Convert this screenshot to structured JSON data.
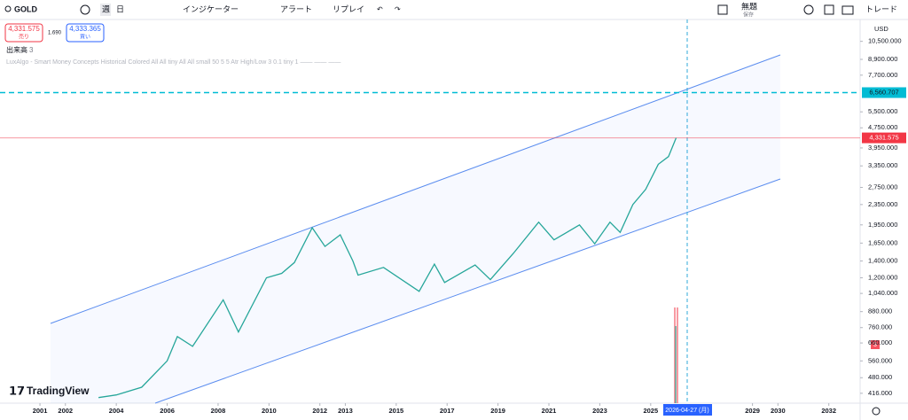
{
  "toolbar": {
    "symbol": "GOLD",
    "interval_week": "週",
    "interval_day": "日",
    "indicators": "インジケーター",
    "alert": "アラート",
    "replay": "リプレイ",
    "layout_name": "無題",
    "save": "保存",
    "trade": "トレード"
  },
  "quote": {
    "sell_price": "4,331.575",
    "sell_label": "売り",
    "spread": "1.690",
    "buy_price": "4,333.365",
    "buy_label": "買い"
  },
  "legend": {
    "volume_label": "出来高",
    "volume_value": "3",
    "indicator": "LuxAlgo - Smart Money Concepts Historical Colored All All tiny All All small 50 5 5 Atr High/Low 3 0.1 tiny 1 —— —— ——"
  },
  "watermark": "TradingView",
  "chart_data": {
    "type": "line",
    "log_scale": true,
    "currency": "USD",
    "color": "#26a69a",
    "x": [
      2003.3,
      2004,
      2005,
      2006,
      2006.4,
      2007,
      2008.2,
      2008.8,
      2009.9,
      2010.5,
      2011,
      2011.7,
      2012.2,
      2012.8,
      2013.3,
      2013.5,
      2014.5,
      2015.9,
      2016.5,
      2016.9,
      2018.1,
      2018.7,
      2019.6,
      2020.6,
      2021.2,
      2022.2,
      2022.8,
      2023.4,
      2023.8,
      2024.3,
      2024.8,
      2025.3,
      2025.7,
      2026
    ],
    "values": [
      400,
      410,
      440,
      560,
      700,
      640,
      980,
      730,
      1200,
      1250,
      1380,
      1900,
      1600,
      1780,
      1400,
      1230,
      1320,
      1060,
      1360,
      1150,
      1350,
      1180,
      1500,
      2000,
      1700,
      1950,
      1640,
      2000,
      1820,
      2350,
      2700,
      3400,
      3650,
      4331.575
    ],
    "xlim": [
      1999.43,
      2033.23
    ],
    "xticks": [
      2001,
      2002,
      2004,
      2006,
      2008,
      2010,
      2012,
      2013,
      2015,
      2017,
      2019,
      2021,
      2023,
      2025,
      2029,
      2030,
      2032
    ],
    "ylim": [
      380,
      11450
    ],
    "yticks": [
      {
        "value": 10500,
        "label": "10,500.000"
      },
      {
        "value": 8900,
        "label": "8,900.000"
      },
      {
        "value": 7700,
        "label": "7,700.000"
      },
      {
        "value": 5500,
        "label": "5,500.000"
      },
      {
        "value": 4750,
        "label": "4,750.000"
      },
      {
        "value": 3950,
        "label": "3,950.000"
      },
      {
        "value": 3350,
        "label": "3,350.000"
      },
      {
        "value": 2750,
        "label": "2,750.000"
      },
      {
        "value": 2350,
        "label": "2,350.000"
      },
      {
        "value": 1950,
        "label": "1,950.000"
      },
      {
        "value": 1650,
        "label": "1,650.000"
      },
      {
        "value": 1400,
        "label": "1,400.000"
      },
      {
        "value": 1200,
        "label": "1,200.000"
      },
      {
        "value": 1040,
        "label": "1,040.000"
      },
      {
        "value": 880,
        "label": "880.000"
      },
      {
        "value": 760,
        "label": "760.000"
      },
      {
        "value": 660,
        "label": "660.000"
      },
      {
        "value": 560,
        "label": "560.000"
      },
      {
        "value": 480,
        "label": "480.000"
      },
      {
        "value": 416,
        "label": "416.000"
      }
    ],
    "price_line": {
      "value": 4331.575,
      "label": "4,331.575"
    },
    "level_line": {
      "value": 6560.707,
      "label": "6,560.707"
    },
    "crosshair_date": "2026-04-27 (月)"
  }
}
